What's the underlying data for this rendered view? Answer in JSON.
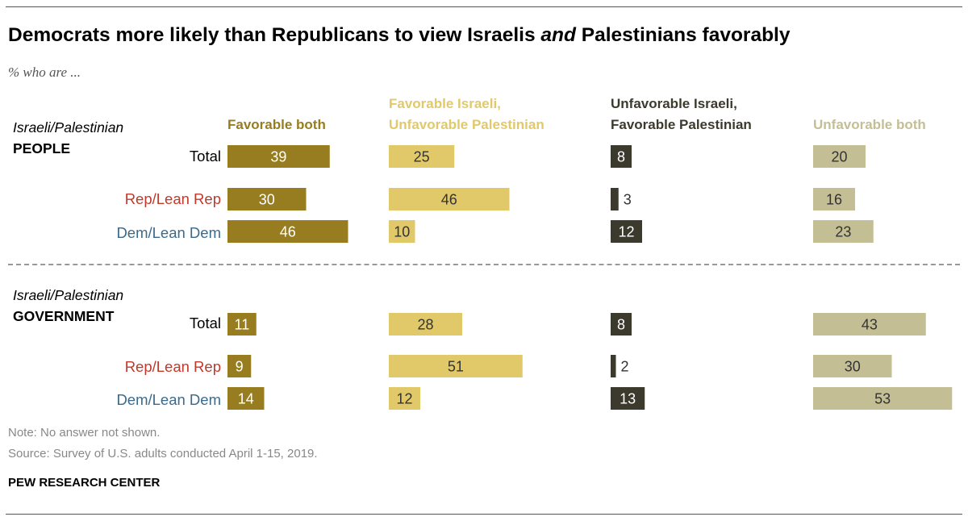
{
  "title_parts": {
    "before": "Democrats more likely than Republicans to view Israelis ",
    "emph": "and",
    "after": " Palestinians favorably"
  },
  "subtitle": "% who are ...",
  "columns": [
    {
      "line1": "",
      "line2": "Favorable both",
      "color": "#977d1f",
      "head_color": "#977d1f",
      "label_color": "#ffffff"
    },
    {
      "line1": "Favorable Israeli,",
      "line2": "Unfavorable Palestinian",
      "color": "#e1c96a",
      "head_color": "#e1c96a",
      "label_color": "#333333"
    },
    {
      "line1": "Unfavorable Israeli,",
      "line2": "Favorable Palestinian",
      "color": "#3b3a2d",
      "head_color": "#3b3a2d",
      "label_color": "#ffffff"
    },
    {
      "line1": "",
      "line2": "Unfavorable both",
      "color": "#c4be95",
      "head_color": "#c4be95",
      "label_color": "#333333"
    }
  ],
  "sections": [
    {
      "label_italic": "Israeli/Palestinian",
      "label_bold": "PEOPLE"
    },
    {
      "label_italic": "Israeli/Palestinian",
      "label_bold": "GOVERNMENT"
    }
  ],
  "row_colors": {
    "Total": "#000000",
    "Rep/Lean Rep": "#c0392b",
    "Dem/Lean Dem": "#3a6a8c"
  },
  "chart_data": {
    "type": "bar",
    "orientation": "horizontal",
    "categories": [
      "Total",
      "Rep/Lean Rep",
      "Dem/Lean Dem"
    ],
    "groups": [
      "Israeli/Palestinian PEOPLE",
      "Israeli/Palestinian GOVERNMENT"
    ],
    "series": [
      {
        "name": "Favorable both",
        "values": [
          [
            39,
            30,
            46
          ],
          [
            11,
            9,
            14
          ]
        ]
      },
      {
        "name": "Favorable Israeli, Unfavorable Palestinian",
        "values": [
          [
            25,
            46,
            10
          ],
          [
            28,
            51,
            12
          ]
        ]
      },
      {
        "name": "Unfavorable Israeli, Favorable Palestinian",
        "values": [
          [
            8,
            3,
            12
          ],
          [
            8,
            2,
            13
          ]
        ]
      },
      {
        "name": "Unfavorable both",
        "values": [
          [
            20,
            16,
            23
          ],
          [
            43,
            30,
            53
          ]
        ]
      }
    ]
  },
  "note": "Note: No answer not shown.",
  "source": "Source: Survey of U.S. adults conducted April 1-15, 2019.",
  "brand": "PEW RESEARCH CENTER"
}
